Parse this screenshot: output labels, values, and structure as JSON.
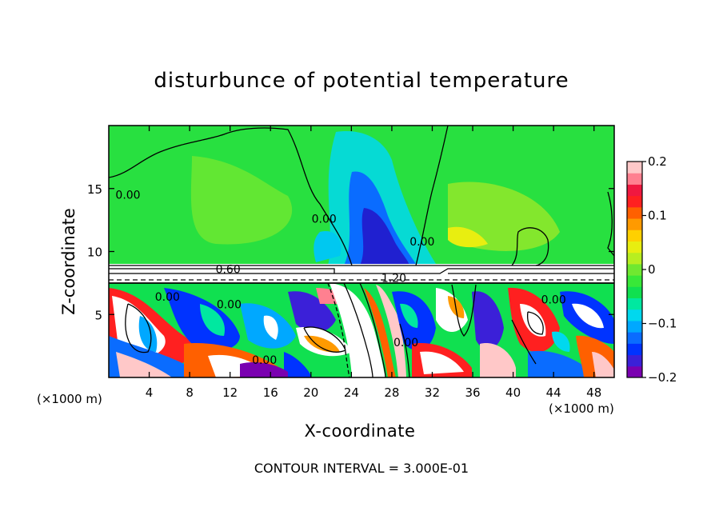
{
  "chart_data": {
    "type": "heatmap",
    "title": "disturbunce of potential temperature",
    "xlabel": "X-coordinate",
    "ylabel": "Z-coordinate",
    "x_unit": "(×1000 m)",
    "footer": "CONTOUR INTERVAL = 3.000E-01",
    "xlim": [
      0,
      50
    ],
    "ylim": [
      0,
      20
    ],
    "x_ticks": [
      4,
      8,
      12,
      16,
      20,
      24,
      28,
      32,
      36,
      40,
      44,
      48
    ],
    "y_ticks": [
      5,
      10,
      15
    ],
    "colorbar": {
      "range": [
        -0.2,
        0.2
      ],
      "tick_values": [
        0.2,
        0.1,
        0,
        -0.1,
        -0.2
      ],
      "tick_labels": [
        "0.2",
        "0.1",
        "0",
        "−0.1",
        "−0.2"
      ],
      "colors": [
        "#7a00b0",
        "#3b20d8",
        "#0033ff",
        "#0a6cff",
        "#00a8ff",
        "#00d8ee",
        "#00e8a0",
        "#10e050",
        "#38e838",
        "#70e830",
        "#b8ee20",
        "#e8ee10",
        "#ffd000",
        "#ff9a00",
        "#ff6000",
        "#ff2020",
        "#f01840",
        "#ff8090",
        "#ffc8c8"
      ]
    },
    "contour_labels": [
      {
        "text": "0.00",
        "x": 1.9,
        "z": 14.5
      },
      {
        "text": "0.00",
        "x": 21.3,
        "z": 12.6
      },
      {
        "text": "0.00",
        "x": 31.0,
        "z": 10.8
      },
      {
        "text": "0.60",
        "x": 11.8,
        "z": 8.6
      },
      {
        "text": "1.20",
        "x": 28.2,
        "z": 7.9
      },
      {
        "text": "0.00",
        "x": 5.8,
        "z": 6.4
      },
      {
        "text": "0.00",
        "x": 11.9,
        "z": 5.8
      },
      {
        "text": "0.00",
        "x": 29.4,
        "z": 2.8
      },
      {
        "text": "0.00",
        "x": 15.4,
        "z": 1.4
      },
      {
        "text": "0.00",
        "x": 44.0,
        "z": 6.2
      }
    ]
  }
}
